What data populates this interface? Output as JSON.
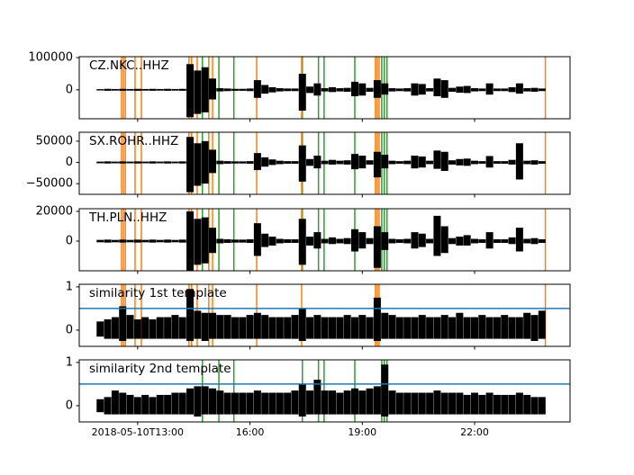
{
  "chart_data": [
    {
      "type": "envelope",
      "label": "CZ.NKC..HHZ",
      "color": "#000000",
      "xlim": [
        11.44,
        24.55
      ],
      "ylim": [
        -90000,
        103000
      ],
      "yticks": [
        0,
        100000
      ],
      "x": [
        12,
        12.2,
        12.4,
        12.6,
        12.8,
        13,
        13.2,
        13.4,
        13.6,
        13.8,
        14,
        14.2,
        14.4,
        14.6,
        14.8,
        15,
        15.2,
        15.4,
        15.6,
        15.8,
        16,
        16.2,
        16.4,
        16.6,
        16.8,
        17,
        17.2,
        17.4,
        17.6,
        17.8,
        18,
        18.2,
        18.4,
        18.6,
        18.8,
        19,
        19.2,
        19.4,
        19.6,
        19.8,
        20,
        20.2,
        20.4,
        20.6,
        20.8,
        21,
        21.2,
        21.4,
        21.6,
        21.8,
        22,
        22.2,
        22.4,
        22.6,
        22.8,
        23,
        23.2,
        23.4,
        23.6,
        23.8
      ],
      "max": [
        2000,
        3000,
        2500,
        3000,
        2500,
        3000,
        2500,
        3000,
        2500,
        3000,
        2500,
        3000,
        80000,
        60000,
        70000,
        35000,
        5000,
        4000,
        3000,
        3000,
        4000,
        30000,
        15000,
        8000,
        5000,
        4000,
        4000,
        50000,
        10000,
        20000,
        5000,
        8000,
        5000,
        6000,
        25000,
        20000,
        6000,
        30000,
        20000,
        5000,
        4000,
        5000,
        20000,
        18000,
        5000,
        35000,
        30000,
        6000,
        10000,
        12000,
        5000,
        4000,
        20000,
        4000,
        4000,
        8000,
        20000,
        5000,
        6000,
        4000
      ],
      "min": [
        -2000,
        -3000,
        -2500,
        -3000,
        -2500,
        -3000,
        -2500,
        -3000,
        -2500,
        -3000,
        -2500,
        -3000,
        -85000,
        -75000,
        -70000,
        -30000,
        -5000,
        -4000,
        -3000,
        -3000,
        -4000,
        -25000,
        -12000,
        -8000,
        -5000,
        -4000,
        -4000,
        -65000,
        -10000,
        -18000,
        -5000,
        -7000,
        -5000,
        -6000,
        -20000,
        -18000,
        -6000,
        -25000,
        -15000,
        -5000,
        -4000,
        -5000,
        -18000,
        -15000,
        -5000,
        -20000,
        -25000,
        -6000,
        -9000,
        -10000,
        -5000,
        -4000,
        -15000,
        -4000,
        -4000,
        -7000,
        -12000,
        -5000,
        -6000,
        -4000
      ],
      "vlines": [
        {
          "color": "#2ca02c",
          "x": [
            14.73,
            15.17,
            15.57,
            17.4,
            17.83,
            17.98,
            18.8,
            19.52,
            19.59,
            19.66
          ]
        },
        {
          "color": "#ff7f0e",
          "x": [
            12.57,
            12.62,
            12.67,
            12.93,
            13.1,
            14.37,
            14.44,
            14.59,
            14.9,
            15,
            16.18,
            17.38,
            19.35,
            19.4,
            19.45,
            23.89
          ]
        }
      ]
    },
    {
      "type": "envelope",
      "label": "SX.ROHR..HHZ",
      "color": "#000000",
      "xlim": [
        11.44,
        24.55
      ],
      "ylim": [
        -75000,
        71000
      ],
      "yticks": [
        {
          "value": -50000,
          "label": "−50000"
        },
        0,
        50000
      ],
      "x": [
        12,
        12.2,
        12.4,
        12.6,
        12.8,
        13,
        13.2,
        13.4,
        13.6,
        13.8,
        14,
        14.2,
        14.4,
        14.6,
        14.8,
        15,
        15.2,
        15.4,
        15.6,
        15.8,
        16,
        16.2,
        16.4,
        16.6,
        16.8,
        17,
        17.2,
        17.4,
        17.6,
        17.8,
        18,
        18.2,
        18.4,
        18.6,
        18.8,
        19,
        19.2,
        19.4,
        19.6,
        19.8,
        20,
        20.2,
        20.4,
        20.6,
        20.8,
        21,
        21.2,
        21.4,
        21.6,
        21.8,
        22,
        22.2,
        22.4,
        22.6,
        22.8,
        23,
        23.2,
        23.4,
        23.6,
        23.8
      ],
      "max": [
        2000,
        2500,
        2000,
        2500,
        2000,
        2500,
        2000,
        2500,
        2000,
        2500,
        2000,
        2500,
        60000,
        45000,
        50000,
        30000,
        4000,
        3000,
        2500,
        2500,
        3000,
        22000,
        12000,
        7000,
        4000,
        3000,
        3000,
        40000,
        8000,
        16000,
        4000,
        6000,
        4000,
        5000,
        20000,
        16000,
        5000,
        25000,
        18000,
        4000,
        3000,
        4000,
        16000,
        14000,
        4000,
        28000,
        25000,
        5000,
        8000,
        9000,
        4000,
        3000,
        15000,
        3000,
        3000,
        6000,
        45000,
        4000,
        5000,
        3000
      ],
      "min": [
        -2000,
        -2500,
        -2000,
        -2500,
        -2000,
        -2500,
        -2000,
        -2500,
        -2000,
        -2500,
        -2000,
        -2500,
        -70000,
        -55000,
        -50000,
        -25000,
        -4000,
        -3000,
        -2500,
        -2500,
        -3000,
        -18000,
        -10000,
        -6000,
        -4000,
        -3000,
        -3000,
        -45000,
        -8000,
        -14000,
        -4000,
        -5000,
        -4000,
        -5000,
        -16000,
        -14000,
        -5000,
        -35000,
        -14000,
        -4000,
        -3000,
        -4000,
        -14000,
        -12000,
        -4000,
        -15000,
        -20000,
        -5000,
        -7000,
        -8000,
        -4000,
        -3000,
        -12000,
        -3000,
        -3000,
        -5000,
        -40000,
        -4000,
        -5000,
        -3000
      ],
      "vlines": [
        {
          "color": "#2ca02c",
          "x": [
            14.73,
            15.17,
            15.57,
            17.4,
            17.83,
            17.98,
            18.8,
            19.52,
            19.59,
            19.66
          ]
        },
        {
          "color": "#ff7f0e",
          "x": [
            12.57,
            12.62,
            12.67,
            12.93,
            13.1,
            14.37,
            14.44,
            14.59,
            14.9,
            15,
            16.18,
            17.38,
            19.35,
            19.4,
            19.45,
            23.89
          ]
        }
      ]
    },
    {
      "type": "envelope",
      "label": "TH.PLN..HHZ",
      "color": "#000000",
      "xlim": [
        11.44,
        24.55
      ],
      "ylim": [
        -20000,
        21800
      ],
      "yticks": [
        0,
        20000
      ],
      "x": [
        12,
        12.2,
        12.4,
        12.6,
        12.8,
        13,
        13.2,
        13.4,
        13.6,
        13.8,
        14,
        14.2,
        14.4,
        14.6,
        14.8,
        15,
        15.2,
        15.4,
        15.6,
        15.8,
        16,
        16.2,
        16.4,
        16.6,
        16.8,
        17,
        17.2,
        17.4,
        17.6,
        17.8,
        18,
        18.2,
        18.4,
        18.6,
        18.8,
        19,
        19.2,
        19.4,
        19.6,
        19.8,
        20,
        20.2,
        20.4,
        20.6,
        20.8,
        21,
        21.2,
        21.4,
        21.6,
        21.8,
        22,
        22.2,
        22.4,
        22.6,
        22.8,
        23,
        23.2,
        23.4,
        23.6,
        23.8
      ],
      "max": [
        800,
        1000,
        800,
        1000,
        800,
        1000,
        800,
        1000,
        800,
        1000,
        800,
        1000,
        20000,
        15000,
        16000,
        9000,
        1500,
        1200,
        1000,
        1000,
        1200,
        12000,
        5000,
        3000,
        1500,
        1200,
        1200,
        15000,
        3000,
        6000,
        1500,
        2500,
        1500,
        2000,
        8000,
        6000,
        2000,
        10000,
        6000,
        1500,
        1200,
        1500,
        6000,
        5000,
        1500,
        17000,
        10000,
        2000,
        3000,
        4000,
        1500,
        1200,
        6000,
        1200,
        1200,
        2500,
        9000,
        1500,
        2000,
        1200
      ],
      "min": [
        -800,
        -1000,
        -800,
        -1000,
        -800,
        -1000,
        -800,
        -1000,
        -800,
        -1000,
        -800,
        -1000,
        -20000,
        -16000,
        -15000,
        -8000,
        -1500,
        -1200,
        -1000,
        -1000,
        -1200,
        -10000,
        -4000,
        -3000,
        -1500,
        -1200,
        -1200,
        -16000,
        -3000,
        -5000,
        -1500,
        -2000,
        -1500,
        -2000,
        -7000,
        -5000,
        -2000,
        -18000,
        -6000,
        -1500,
        -1200,
        -1500,
        -5000,
        -4000,
        -1500,
        -10000,
        -8000,
        -2000,
        -3000,
        -3000,
        -1500,
        -1200,
        -5000,
        -1200,
        -1200,
        -2000,
        -7000,
        -1500,
        -2000,
        -1200
      ],
      "vlines": [
        {
          "color": "#2ca02c",
          "x": [
            14.73,
            15.17,
            15.57,
            17.4,
            17.83,
            17.98,
            18.8,
            19.52,
            19.59,
            19.66
          ]
        },
        {
          "color": "#ff7f0e",
          "x": [
            12.57,
            12.62,
            12.67,
            12.93,
            13.1,
            14.37,
            14.44,
            14.59,
            14.9,
            15,
            16.18,
            17.38,
            19.35,
            19.4,
            19.45,
            23.89
          ]
        }
      ]
    },
    {
      "type": "envelope",
      "label": "similarity 1st template",
      "color": "#000000",
      "xlim": [
        11.44,
        24.55
      ],
      "ylim": [
        -0.375,
        1.06
      ],
      "yticks": [
        0,
        1
      ],
      "x": [
        12,
        12.2,
        12.4,
        12.6,
        12.8,
        13,
        13.2,
        13.4,
        13.6,
        13.8,
        14,
        14.2,
        14.4,
        14.6,
        14.8,
        15,
        15.2,
        15.4,
        15.6,
        15.8,
        16,
        16.2,
        16.4,
        16.6,
        16.8,
        17,
        17.2,
        17.4,
        17.6,
        17.8,
        18,
        18.2,
        18.4,
        18.6,
        18.8,
        19,
        19.2,
        19.4,
        19.6,
        19.8,
        20,
        20.2,
        20.4,
        20.6,
        20.8,
        21,
        21.2,
        21.4,
        21.6,
        21.8,
        22,
        22.2,
        22.4,
        22.6,
        22.8,
        23,
        23.2,
        23.4,
        23.6,
        23.8
      ],
      "max": [
        0.2,
        0.25,
        0.3,
        0.55,
        0.35,
        0.25,
        0.3,
        0.25,
        0.3,
        0.3,
        0.35,
        0.3,
        0.95,
        0.45,
        0.4,
        0.4,
        0.35,
        0.35,
        0.3,
        0.3,
        0.35,
        0.4,
        0.35,
        0.3,
        0.3,
        0.3,
        0.35,
        0.5,
        0.3,
        0.35,
        0.3,
        0.3,
        0.3,
        0.35,
        0.3,
        0.35,
        0.3,
        0.75,
        0.4,
        0.35,
        0.3,
        0.3,
        0.3,
        0.35,
        0.3,
        0.3,
        0.35,
        0.3,
        0.4,
        0.3,
        0.3,
        0.35,
        0.3,
        0.3,
        0.35,
        0.3,
        0.3,
        0.4,
        0.35,
        0.45
      ],
      "min": [
        -0.15,
        -0.2,
        -0.2,
        -0.25,
        -0.2,
        -0.2,
        -0.2,
        -0.2,
        -0.2,
        -0.2,
        -0.2,
        -0.2,
        -0.25,
        -0.2,
        -0.25,
        -0.2,
        -0.2,
        -0.2,
        -0.2,
        -0.2,
        -0.2,
        -0.2,
        -0.2,
        -0.2,
        -0.2,
        -0.2,
        -0.2,
        -0.25,
        -0.2,
        -0.2,
        -0.2,
        -0.2,
        -0.2,
        -0.2,
        -0.2,
        -0.2,
        -0.2,
        -0.25,
        -0.2,
        -0.2,
        -0.2,
        -0.2,
        -0.2,
        -0.2,
        -0.2,
        -0.2,
        -0.2,
        -0.2,
        -0.2,
        -0.2,
        -0.2,
        -0.2,
        -0.2,
        -0.2,
        -0.2,
        -0.2,
        -0.2,
        -0.2,
        -0.25,
        -0.2
      ],
      "hline": {
        "value": 0.5,
        "color": "#1f77b4"
      },
      "vlines": [
        {
          "color": "#ff7f0e",
          "x": [
            12.57,
            12.62,
            12.67,
            12.93,
            13.1,
            14.37,
            14.44,
            14.59,
            14.9,
            15,
            16.18,
            17.38,
            19.35,
            19.4,
            19.45,
            23.89
          ]
        }
      ]
    },
    {
      "type": "envelope",
      "label": "similarity 2nd template",
      "color": "#000000",
      "xlim": [
        11.44,
        24.55
      ],
      "ylim": [
        -0.375,
        1.06
      ],
      "yticks": [
        0,
        1
      ],
      "xticks": [
        {
          "value": 13,
          "label": "2018-05-10T13:00"
        },
        {
          "value": 16,
          "label": "16:00"
        },
        {
          "value": 19,
          "label": "19:00"
        },
        {
          "value": 22,
          "label": "22:00"
        }
      ],
      "x": [
        12,
        12.2,
        12.4,
        12.6,
        12.8,
        13,
        13.2,
        13.4,
        13.6,
        13.8,
        14,
        14.2,
        14.4,
        14.6,
        14.8,
        15,
        15.2,
        15.4,
        15.6,
        15.8,
        16,
        16.2,
        16.4,
        16.6,
        16.8,
        17,
        17.2,
        17.4,
        17.6,
        17.8,
        18,
        18.2,
        18.4,
        18.6,
        18.8,
        19,
        19.2,
        19.4,
        19.6,
        19.8,
        20,
        20.2,
        20.4,
        20.6,
        20.8,
        21,
        21.2,
        21.4,
        21.6,
        21.8,
        22,
        22.2,
        22.4,
        22.6,
        22.8,
        23,
        23.2,
        23.4,
        23.6,
        23.8
      ],
      "max": [
        0.15,
        0.2,
        0.35,
        0.3,
        0.25,
        0.2,
        0.25,
        0.2,
        0.25,
        0.25,
        0.3,
        0.3,
        0.4,
        0.45,
        0.45,
        0.4,
        0.35,
        0.3,
        0.3,
        0.3,
        0.3,
        0.35,
        0.3,
        0.3,
        0.3,
        0.3,
        0.35,
        0.5,
        0.35,
        0.6,
        0.35,
        0.35,
        0.3,
        0.35,
        0.4,
        0.35,
        0.4,
        0.45,
        0.95,
        0.35,
        0.3,
        0.3,
        0.3,
        0.3,
        0.3,
        0.35,
        0.3,
        0.3,
        0.3,
        0.25,
        0.3,
        0.25,
        0.3,
        0.25,
        0.25,
        0.25,
        0.3,
        0.25,
        0.2,
        0.2
      ],
      "min": [
        -0.15,
        -0.2,
        -0.2,
        -0.2,
        -0.2,
        -0.2,
        -0.2,
        -0.2,
        -0.2,
        -0.2,
        -0.2,
        -0.2,
        -0.2,
        -0.25,
        -0.2,
        -0.2,
        -0.2,
        -0.2,
        -0.2,
        -0.2,
        -0.2,
        -0.2,
        -0.2,
        -0.2,
        -0.2,
        -0.2,
        -0.2,
        -0.25,
        -0.2,
        -0.2,
        -0.2,
        -0.2,
        -0.2,
        -0.2,
        -0.2,
        -0.2,
        -0.2,
        -0.2,
        -0.25,
        -0.2,
        -0.2,
        -0.2,
        -0.2,
        -0.2,
        -0.2,
        -0.2,
        -0.2,
        -0.2,
        -0.2,
        -0.2,
        -0.2,
        -0.2,
        -0.2,
        -0.2,
        -0.2,
        -0.2,
        -0.2,
        -0.2,
        -0.2,
        -0.2
      ],
      "hline": {
        "value": 0.5,
        "color": "#1f77b4"
      },
      "vlines": [
        {
          "color": "#2ca02c",
          "x": [
            14.73,
            15.17,
            15.57,
            17.4,
            17.83,
            17.98,
            18.8,
            19.52,
            19.59,
            19.66
          ]
        }
      ]
    }
  ]
}
